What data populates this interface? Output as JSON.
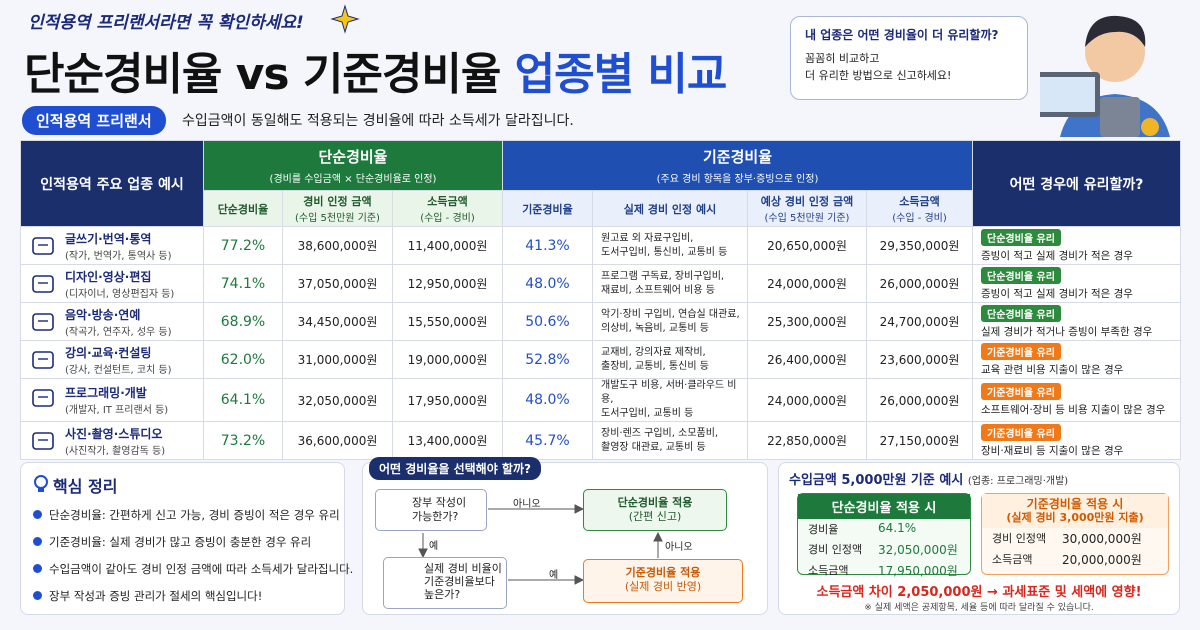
{
  "header": {
    "tagline": "인적용역 프리랜서라면 꼭 확인하세요!",
    "title": "단순경비율 vs 기준경비율",
    "title_highlight": "업종별 비교",
    "badge": "인적용역 프리랜서",
    "subtitle": "수입금액이 동일해도 적용되는 경비율에 따라 소득세가 달라집니다."
  },
  "bubble": {
    "question": "내 업종은 어떤 경비율이 더 유리할까?",
    "lines": [
      "꼼꼼히 비교하고",
      "더 유리한 방법으로 신고하세요!"
    ]
  },
  "table": {
    "industry_header": "인적용역 주요 업종 예시",
    "simple": {
      "title": "단순경비율",
      "note": "(경비를 수입금액 × 단순경비율로 인정)",
      "columns": [
        [
          "단순경비율"
        ],
        [
          "경비 인정 금액",
          "(수입 5천만원 기준)"
        ],
        [
          "소득금액",
          "(수입 - 경비)"
        ]
      ]
    },
    "standard": {
      "title": "기준경비율",
      "note": "(주요 경비 항목을 장부·증빙으로 인정)",
      "columns": [
        [
          "기준경비율"
        ],
        [
          "실제 경비 인정 예시"
        ],
        [
          "예상 경비 인정 금액",
          "(수입 5천만원 기준)"
        ],
        [
          "소득금액",
          "(수입 - 경비)"
        ]
      ]
    },
    "advice_header": "어떤 경우에 유리할까?",
    "rows": [
      {
        "name": "글쓰기·번역·통역",
        "examples": "(작가, 번역가, 통역사 등)",
        "simple_rate": "77.2%",
        "simple_expense": "38,600,000원",
        "simple_income": "11,400,000원",
        "standard_rate": "41.3%",
        "standard_detail": [
          "원고료 외 자료구입비,",
          "도서구입비, 통신비, 교통비 등"
        ],
        "standard_expense": "20,650,000원",
        "standard_income": "29,350,000원",
        "advice_tag": "단순경비율 유리",
        "advice": "증빙이 적고 실제 경비가 적은 경우"
      },
      {
        "name": "디자인·영상·편집",
        "examples": "(디자이너, 영상편집자 등)",
        "simple_rate": "74.1%",
        "simple_expense": "37,050,000원",
        "simple_income": "12,950,000원",
        "standard_rate": "48.0%",
        "standard_detail": [
          "프로그램 구독료, 장비구입비,",
          "재료비, 소프트웨어 비용 등"
        ],
        "standard_expense": "24,000,000원",
        "standard_income": "26,000,000원",
        "advice_tag": "단순경비율 유리",
        "advice": "증빙이 적고 실제 경비가 적은 경우"
      },
      {
        "name": "음악·방송·연예",
        "examples": "(작곡가, 연주자, 성우 등)",
        "simple_rate": "68.9%",
        "simple_expense": "34,450,000원",
        "simple_income": "15,550,000원",
        "standard_rate": "50.6%",
        "standard_detail": [
          "악기·장비 구입비, 연습실 대관료,",
          "의상비, 녹음비, 교통비 등"
        ],
        "standard_expense": "25,300,000원",
        "standard_income": "24,700,000원",
        "advice_tag": "단순경비율 유리",
        "advice": "실제 경비가 적거나 증빙이 부족한 경우"
      },
      {
        "name": "강의·교육·컨설팅",
        "examples": "(강사, 컨설턴트, 코치 등)",
        "simple_rate": "62.0%",
        "simple_expense": "31,000,000원",
        "simple_income": "19,000,000원",
        "standard_rate": "52.8%",
        "standard_detail": [
          "교재비, 강의자료 제작비,",
          "출장비, 교통비, 통신비 등"
        ],
        "standard_expense": "26,400,000원",
        "standard_income": "23,600,000원",
        "advice_tag": "기준경비율 유리",
        "advice": "교육 관련 비용 지출이 많은 경우"
      },
      {
        "name": "프로그래밍·개발",
        "examples": "(개발자, IT 프리랜서 등)",
        "simple_rate": "64.1%",
        "simple_expense": "32,050,000원",
        "simple_income": "17,950,000원",
        "standard_rate": "48.0%",
        "standard_detail": [
          "개발도구 비용, 서버·클라우드 비용,",
          "도서구입비, 교통비 등"
        ],
        "standard_expense": "24,000,000원",
        "standard_income": "26,000,000원",
        "advice_tag": "기준경비율 유리",
        "advice": "소프트웨어·장비 등 비용 지출이 많은 경우"
      },
      {
        "name": "사진·촬영·스튜디오",
        "examples": "(사진작가, 촬영감독 등)",
        "simple_rate": "73.2%",
        "simple_expense": "36,600,000원",
        "simple_income": "13,400,000원",
        "standard_rate": "45.7%",
        "standard_detail": [
          "장비·렌즈 구입비, 소모품비,",
          "촬영장 대관료, 교통비 등"
        ],
        "standard_expense": "22,850,000원",
        "standard_income": "27,150,000원",
        "advice_tag": "기준경비율 유리",
        "advice": "장비·재료비 등 지출이 많은 경우"
      }
    ]
  },
  "summary": {
    "title": "핵심 정리",
    "items": [
      "단순경비율: 간편하게 신고 가능, 경비 증빙이 적은 경우 유리",
      "기준경비율: 실제 경비가 많고 증빙이 충분한 경우 유리",
      "수입금액이 같아도 경비 인정 금액에 따라 소득세가 달라집니다.",
      "장부 작성과 증빙 관리가 절세의 핵심입니다!"
    ]
  },
  "flow": {
    "title": "어떤 경비율을 선택해야 할까?",
    "q1": [
      "장부 작성이",
      "가능한가?"
    ],
    "q1_no": "아니오",
    "q1_yes": "예",
    "result1": [
      "단순경비율 적용",
      "(간편 신고)"
    ],
    "q2": [
      "실제 경비 비율이",
      "기준경비율보다",
      "높은가?"
    ],
    "q2_yes": "예",
    "q2_no": "아니오",
    "result2": [
      "기준경비율 적용",
      "(실제 경비 반영)"
    ]
  },
  "example": {
    "title": "수입금액 5,000만원 기준 예시",
    "note": "(업종: 프로그래밍·개발)",
    "simple": {
      "title": "단순경비율 적용 시",
      "rows": [
        [
          "경비율",
          "64.1%"
        ],
        [
          "경비 인정액",
          "32,050,000원"
        ],
        [
          "소득금액",
          "17,950,000원"
        ]
      ]
    },
    "standard": {
      "title": "기준경비율 적용 시",
      "subtitle": "(실제 경비 3,000만원 지출)",
      "rows": [
        [
          "경비 인정액",
          "30,000,000원"
        ],
        [
          "소득금액",
          "20,000,000원"
        ]
      ]
    },
    "difference": "소득금액 차이 2,050,000원 → 과세표준 및 세액에 영향!",
    "footnote": "※ 실제 세액은 공제항목, 세율 등에 따라 달라질 수 있습니다."
  }
}
